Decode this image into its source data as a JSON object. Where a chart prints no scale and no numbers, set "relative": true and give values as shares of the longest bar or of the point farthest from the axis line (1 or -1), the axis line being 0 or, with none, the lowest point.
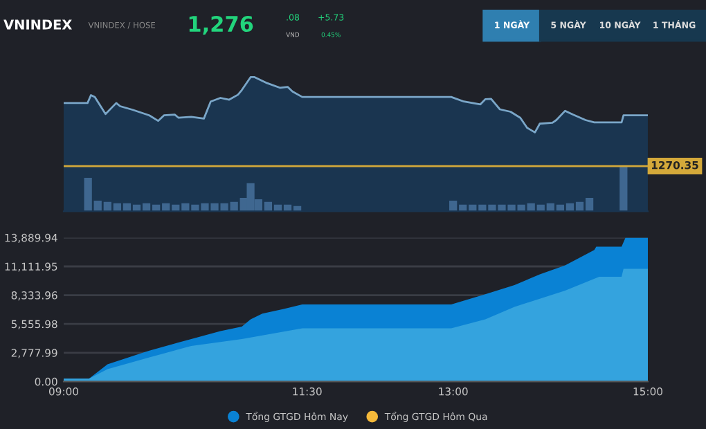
{
  "chart_data": [
    {
      "type": "other",
      "annotations": [
        "VNINDEX",
        "VNINDEX / HOSE",
        "1,276",
        ".08",
        "VND",
        "+5.73",
        "0.45%",
        "1 NGÀY",
        "5 NGÀY",
        "10 NGÀY",
        "1 THÁNG"
      ]
    },
    {
      "type": "area",
      "relative": true,
      "xlim": [
        9,
        15
      ],
      "annotations": [
        "1270.35"
      ],
      "series": [
        {
          "color": "#7aa6c8",
          "x": [
            9.0,
            9.245,
            9.28,
            9.32,
            9.43,
            9.54,
            9.58,
            9.71,
            9.88,
            9.97,
            10.03,
            10.14,
            10.18,
            10.31,
            10.44,
            10.51,
            10.61,
            10.7,
            10.79,
            10.83,
            10.92,
            10.96,
            11.09,
            11.22,
            11.3,
            11.35,
            11.45,
            12.98,
            13.11,
            13.28,
            13.33,
            13.39,
            13.48,
            13.59,
            13.69,
            13.76,
            13.84,
            13.89,
            14.02,
            14.06,
            14.15,
            14.23,
            14.36,
            14.45,
            14.73,
            14.75,
            15.0
          ],
          "values": [
            0.807,
            0.807,
            0.866,
            0.852,
            0.725,
            0.807,
            0.783,
            0.756,
            0.715,
            0.674,
            0.715,
            0.721,
            0.697,
            0.704,
            0.691,
            0.818,
            0.845,
            0.832,
            0.869,
            0.904,
            1.0,
            1.0,
            0.955,
            0.921,
            0.927,
            0.893,
            0.852,
            0.852,
            0.818,
            0.797,
            0.835,
            0.838,
            0.76,
            0.742,
            0.697,
            0.622,
            0.588,
            0.653,
            0.66,
            0.68,
            0.749,
            0.721,
            0.68,
            0.663,
            0.663,
            0.715,
            0.715
          ]
        },
        {
          "type": "bar",
          "color": "#3f6790",
          "x": [
            9.25,
            9.35,
            9.45,
            9.55,
            9.65,
            9.75,
            9.85,
            9.95,
            10.05,
            10.15,
            10.25,
            10.35,
            10.45,
            10.55,
            10.65,
            10.75,
            10.85,
            10.92,
            11.0,
            11.1,
            11.2,
            11.3,
            11.4,
            13.0,
            13.1,
            13.2,
            13.3,
            13.4,
            13.5,
            13.6,
            13.7,
            13.8,
            13.9,
            14.0,
            14.1,
            14.2,
            14.3,
            14.4,
            14.75
          ],
          "values": [
            0.25,
            0.08,
            0.07,
            0.06,
            0.06,
            0.05,
            0.06,
            0.05,
            0.06,
            0.05,
            0.06,
            0.05,
            0.06,
            0.06,
            0.06,
            0.07,
            0.1,
            0.21,
            0.09,
            0.07,
            0.05,
            0.05,
            0.04,
            0.08,
            0.05,
            0.05,
            0.05,
            0.05,
            0.05,
            0.05,
            0.05,
            0.06,
            0.05,
            0.06,
            0.05,
            0.06,
            0.07,
            0.1,
            0.34
          ]
        }
      ],
      "ref_lines": [
        {
          "axis": "y",
          "value": 0.337,
          "color": "#d4a93a"
        }
      ]
    },
    {
      "type": "area",
      "xlim": [
        9,
        15
      ],
      "ylim": [
        0,
        13889.94
      ],
      "grid": "y",
      "legend": "bottom",
      "xticks": [
        {
          "value": 9,
          "label": "09:00"
        },
        {
          "value": 11.5,
          "label": "11:30"
        },
        {
          "value": 13,
          "label": "13:00"
        },
        {
          "value": 15,
          "label": "15:00"
        }
      ],
      "yticks": [
        {
          "value": 0,
          "label": "0.00"
        },
        {
          "value": 2777.99,
          "label": "2,777.99"
        },
        {
          "value": 5555.98,
          "label": "5,555.98"
        },
        {
          "value": 8333.96,
          "label": "8,333.96"
        },
        {
          "value": 11111.95,
          "label": "11,111.95"
        },
        {
          "value": 13889.94,
          "label": "13,889.94"
        }
      ],
      "series": [
        {
          "name": "Tổng GTGD Hôm Nay",
          "color": "#0a82d4",
          "x": [
            9.0,
            9.26,
            9.45,
            9.88,
            10.31,
            10.61,
            10.83,
            10.92,
            11.04,
            11.26,
            11.45,
            12.98,
            13.33,
            13.63,
            13.89,
            14.15,
            14.45,
            14.47,
            14.73,
            14.77,
            15.0
          ],
          "values": [
            270,
            270,
            1660,
            2990,
            4100,
            4860,
            5300,
            6010,
            6550,
            7000,
            7440,
            7440,
            8420,
            9310,
            10340,
            11220,
            12690,
            13010,
            13010,
            13880,
            13880
          ]
        },
        {
          "color": "#34a3de",
          "x": [
            9.0,
            9.26,
            9.45,
            9.88,
            10.31,
            10.83,
            11.45,
            12.98,
            13.33,
            13.63,
            14.15,
            14.5,
            14.73,
            14.75,
            15.0
          ],
          "values": [
            270,
            270,
            1200,
            2330,
            3430,
            4100,
            5130,
            5130,
            6010,
            7210,
            8780,
            10110,
            10110,
            10870,
            10870
          ]
        },
        {
          "name": "Tổng GTGD Hôm Qua",
          "color": "#f5b93a"
        }
      ]
    }
  ]
}
